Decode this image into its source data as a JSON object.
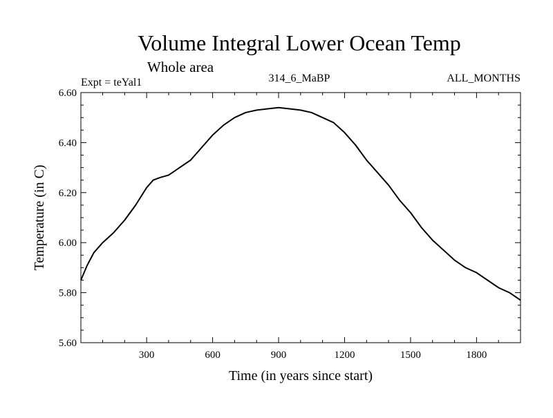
{
  "chart_data": {
    "type": "line",
    "title": "Volume Integral Lower Ocean Temp",
    "subtitle": "Whole area",
    "experiment": "Expt = teYal1",
    "run_label": "314_6_MaBP",
    "period": "ALL_MONTHS",
    "xlabel": "Time (in years since start)",
    "ylabel": "Temperature (in C)",
    "xlim": [
      1,
      2000
    ],
    "ylim": [
      5.6,
      6.6
    ],
    "xticks": [
      300,
      600,
      900,
      1200,
      1500,
      1800
    ],
    "xtick_labels": [
      "300",
      "600",
      "900",
      "1200",
      "1500",
      "1800"
    ],
    "yticks": [
      5.6,
      5.8,
      6.0,
      6.2,
      6.4,
      6.6
    ],
    "ytick_labels": [
      "5.60",
      "5.80",
      "6.00",
      "6.20",
      "6.40",
      "6.60"
    ],
    "series": [
      {
        "name": "Volume Integral Lower Ocean Temp",
        "color": "#000000",
        "x": [
          1,
          30,
          60,
          100,
          150,
          200,
          250,
          300,
          330,
          360,
          400,
          450,
          500,
          550,
          600,
          650,
          700,
          750,
          800,
          850,
          900,
          950,
          1000,
          1050,
          1100,
          1150,
          1200,
          1250,
          1300,
          1350,
          1400,
          1450,
          1500,
          1550,
          1600,
          1650,
          1700,
          1750,
          1800,
          1850,
          1900,
          1950,
          2000
        ],
        "y": [
          5.85,
          5.91,
          5.96,
          6.0,
          6.04,
          6.09,
          6.15,
          6.22,
          6.25,
          6.26,
          6.27,
          6.3,
          6.33,
          6.38,
          6.43,
          6.47,
          6.5,
          6.52,
          6.53,
          6.535,
          6.54,
          6.535,
          6.53,
          6.52,
          6.5,
          6.48,
          6.44,
          6.39,
          6.33,
          6.28,
          6.23,
          6.17,
          6.12,
          6.06,
          6.01,
          5.97,
          5.93,
          5.9,
          5.88,
          5.85,
          5.82,
          5.8,
          5.77
        ]
      }
    ]
  }
}
